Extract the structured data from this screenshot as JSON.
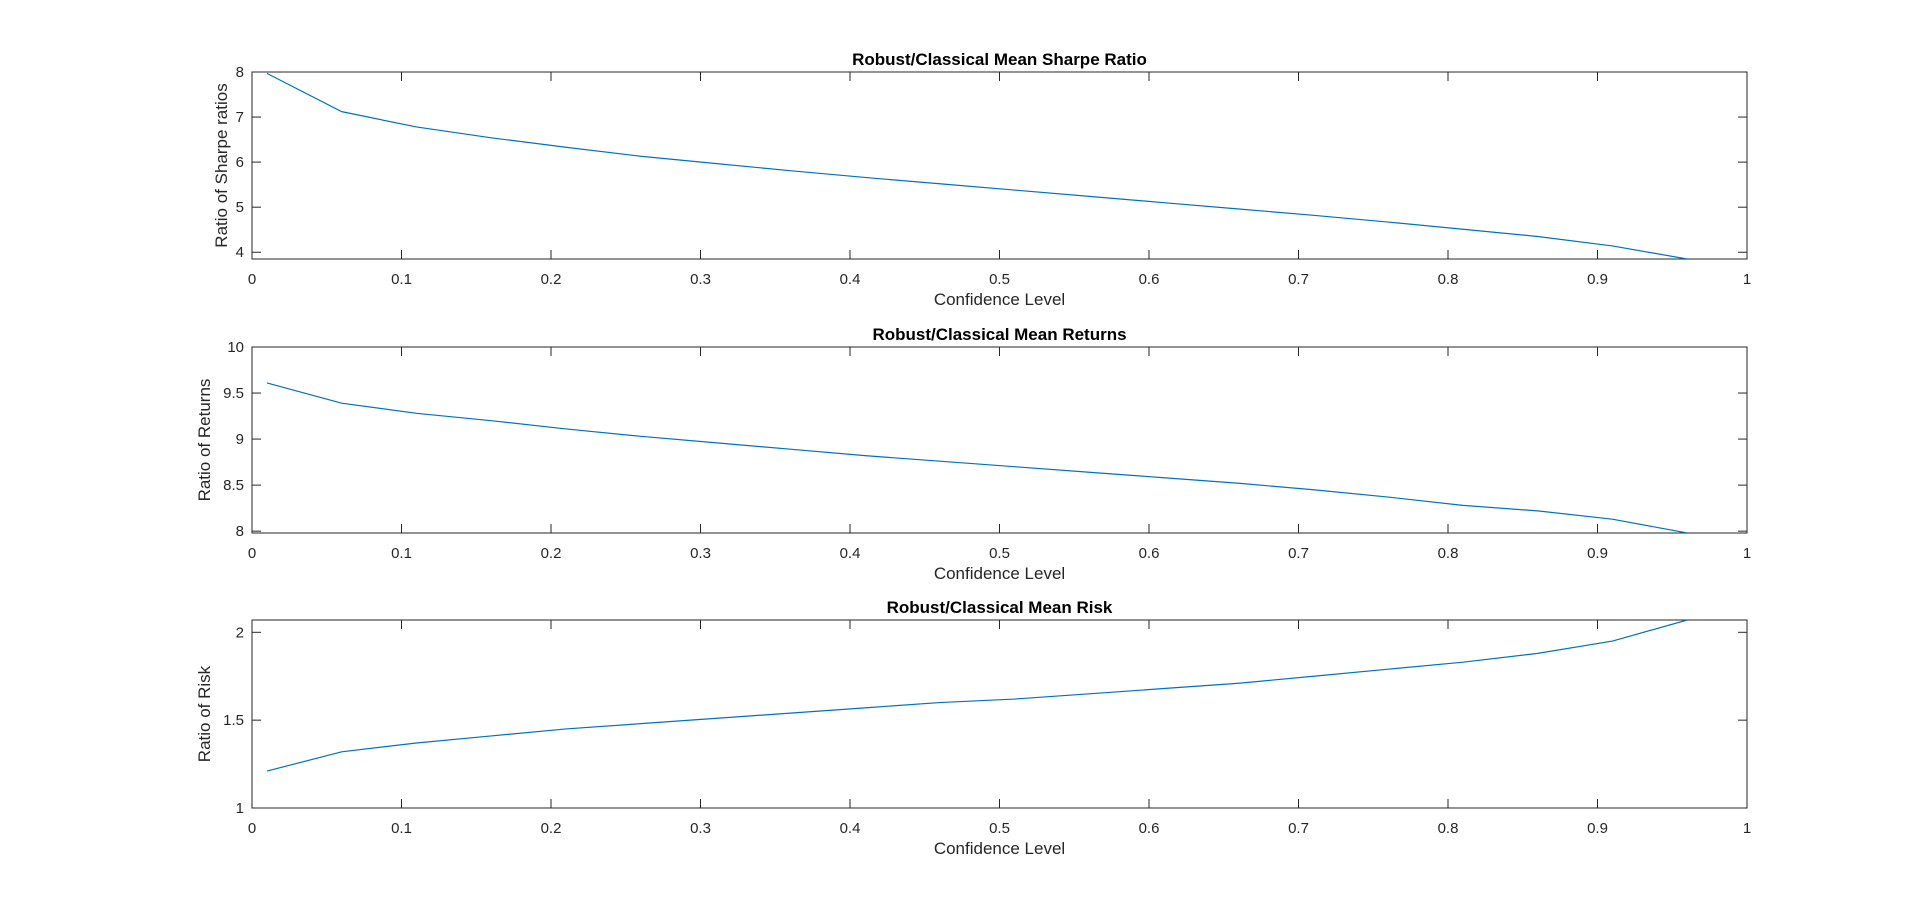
{
  "chart_data": [
    {
      "type": "line",
      "title": "Robust/Classical Mean Sharpe Ratio",
      "xlabel": "Confidence Level",
      "ylabel": "Ratio of Sharpe ratios",
      "xlim": [
        0,
        1
      ],
      "ylim": [
        3.85,
        8
      ],
      "xticks": [
        "0",
        "0.1",
        "0.2",
        "0.3",
        "0.4",
        "0.5",
        "0.6",
        "0.7",
        "0.8",
        "0.9",
        "1"
      ],
      "yticks": [
        "4",
        "5",
        "6",
        "7",
        "8"
      ],
      "grid": false,
      "series": [
        {
          "color": "#0072BD",
          "x": [
            0.01,
            0.06,
            0.11,
            0.16,
            0.21,
            0.26,
            0.31,
            0.36,
            0.41,
            0.46,
            0.51,
            0.56,
            0.61,
            0.66,
            0.71,
            0.76,
            0.81,
            0.86,
            0.91,
            0.96
          ],
          "y": [
            7.97,
            7.12,
            6.78,
            6.54,
            6.33,
            6.13,
            5.97,
            5.81,
            5.66,
            5.52,
            5.38,
            5.24,
            5.1,
            4.96,
            4.82,
            4.67,
            4.51,
            4.35,
            4.14,
            3.85
          ]
        }
      ]
    },
    {
      "type": "line",
      "title": "Robust/Classical Mean Returns",
      "xlabel": "Confidence Level",
      "ylabel": "Ratio of Returns",
      "xlim": [
        0,
        1
      ],
      "ylim": [
        7.98,
        10
      ],
      "xticks": [
        "0",
        "0.1",
        "0.2",
        "0.3",
        "0.4",
        "0.5",
        "0.6",
        "0.7",
        "0.8",
        "0.9",
        "1"
      ],
      "yticks": [
        "8",
        "8.5",
        "9",
        "9.5",
        "10"
      ],
      "grid": false,
      "series": [
        {
          "color": "#0072BD",
          "x": [
            0.01,
            0.06,
            0.11,
            0.16,
            0.21,
            0.26,
            0.31,
            0.36,
            0.41,
            0.46,
            0.51,
            0.56,
            0.61,
            0.66,
            0.71,
            0.76,
            0.81,
            0.86,
            0.91,
            0.96
          ],
          "y": [
            9.61,
            9.39,
            9.28,
            9.2,
            9.11,
            9.03,
            8.96,
            8.89,
            8.82,
            8.76,
            8.7,
            8.64,
            8.58,
            8.52,
            8.45,
            8.37,
            8.28,
            8.22,
            8.13,
            7.98
          ]
        }
      ]
    },
    {
      "type": "line",
      "title": "Robust/Classical Mean Risk",
      "xlabel": "Confidence Level",
      "ylabel": "Ratio of Risk",
      "xlim": [
        0,
        1
      ],
      "ylim": [
        1,
        2.07
      ],
      "xticks": [
        "0",
        "0.1",
        "0.2",
        "0.3",
        "0.4",
        "0.5",
        "0.6",
        "0.7",
        "0.8",
        "0.9",
        "1"
      ],
      "yticks": [
        "1",
        "1.5",
        "2"
      ],
      "grid": false,
      "series": [
        {
          "color": "#0072BD",
          "x": [
            0.01,
            0.06,
            0.11,
            0.16,
            0.21,
            0.26,
            0.31,
            0.36,
            0.41,
            0.46,
            0.51,
            0.56,
            0.61,
            0.66,
            0.71,
            0.76,
            0.81,
            0.86,
            0.91,
            0.96
          ],
          "y": [
            1.21,
            1.32,
            1.37,
            1.41,
            1.45,
            1.48,
            1.51,
            1.54,
            1.57,
            1.6,
            1.62,
            1.65,
            1.68,
            1.71,
            1.75,
            1.79,
            1.83,
            1.88,
            1.95,
            2.07
          ]
        }
      ]
    }
  ]
}
